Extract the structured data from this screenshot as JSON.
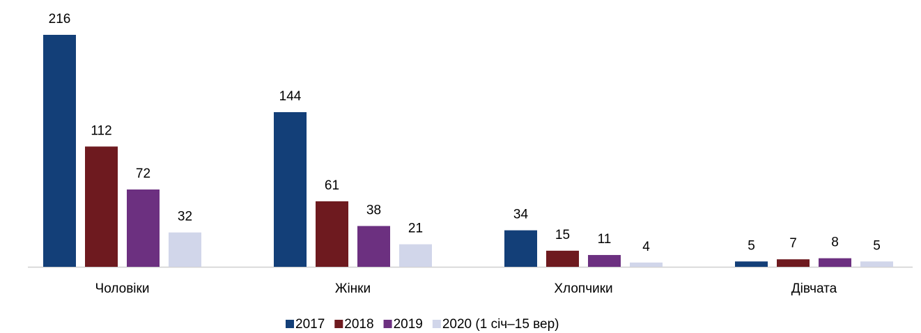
{
  "chart_data": {
    "type": "bar",
    "categories": [
      "Чоловіки",
      "Жінки",
      "Хлопчики",
      "Дівчата"
    ],
    "series": [
      {
        "name": "2017",
        "color": "#133f78",
        "values": [
          216,
          144,
          34,
          5
        ]
      },
      {
        "name": "2018",
        "color": "#6e1a1f",
        "values": [
          112,
          61,
          15,
          7
        ]
      },
      {
        "name": "2019",
        "color": "#6c3080",
        "values": [
          72,
          38,
          11,
          8
        ]
      },
      {
        "name": "2020 (1 січ–15 вер)",
        "color": "#d1d6ea",
        "values": [
          32,
          21,
          4,
          5
        ]
      }
    ],
    "legend": "bottom"
  }
}
